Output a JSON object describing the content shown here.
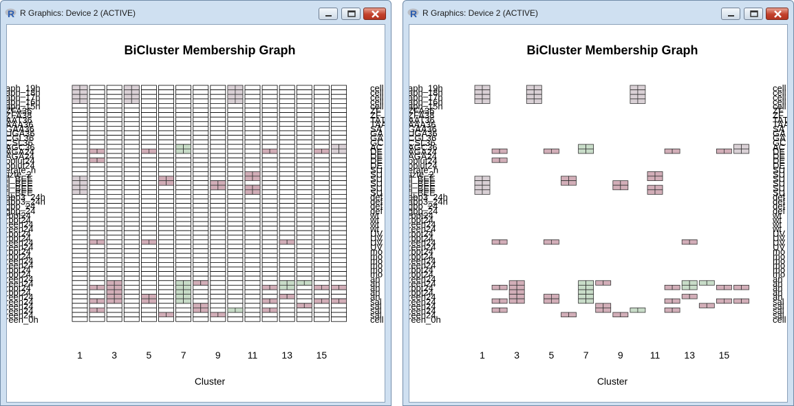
{
  "windows": [
    {
      "title": "R Graphics: Device 2 (ACTIVE)",
      "plot": {
        "title": "BiCluster Membership Graph",
        "xlabel": "Cluster",
        "ticks": [
          "1",
          "3",
          "5",
          "7",
          "9",
          "11",
          "13",
          "15"
        ],
        "show_empty_cells": true
      }
    },
    {
      "title": "R Graphics: Device 2 (ACTIVE)",
      "plot": {
        "title": "BiCluster Membership Graph",
        "xlabel": "Cluster",
        "ticks": [
          "1",
          "3",
          "5",
          "7",
          "9",
          "11",
          "13",
          "15"
        ],
        "show_empty_cells": false
      }
    }
  ],
  "chart_data": {
    "type": "heatmap",
    "title": "BiCluster Membership Graph",
    "xlabel": "Cluster",
    "clusters": 16,
    "left_row_labels": [
      "aph_19h",
      "aph_18h",
      "aph_17h",
      "aph_16h",
      "aph_15h",
      "ZFA36",
      "ZFA38",
      "AAT36",
      "AAA36",
      "GAA36",
      "UGA36",
      "CGL36",
      "CSL36",
      "AGC36",
      "AGA24",
      "AGA24",
      "bplut24",
      "bplut24",
      "erate_h",
      "lizte_2",
      "fl_BEE",
      "fl_BEE",
      "fl_BEE",
      "fl_BEE",
      "abp3_24h",
      "abp3_24h",
      "gbp_24",
      "gbp_24",
      "rbpt24",
      "rbpt24",
      "reen24",
      "reen24",
      "rbpt24",
      "rbpt24",
      "reen24",
      "reen24",
      "rbpt24",
      "rbpt24",
      "reen24",
      "reen24",
      "rbpt24",
      "rbpt24",
      "reen24",
      "reen24",
      "rbpt24",
      "rbpt24",
      "reen24",
      "reen24",
      "reen24",
      "reen24",
      "reen24",
      "reen_0h"
    ],
    "right_row_labels": [
      "cell",
      "cell",
      "cell",
      "cell",
      "cell",
      "ZF",
      "ZF",
      "TAT",
      "TAA",
      "SA",
      "GA",
      "GA",
      "GC",
      "AC",
      "DE",
      "DE",
      "DE",
      "DE",
      "SU",
      "SU",
      "SU",
      "SU",
      "SU",
      "SU",
      "def",
      "def",
      "def",
      "def",
      "wt",
      "wt",
      "wt",
      "wt",
      "UV",
      "UV",
      "UV",
      "UV",
      "mo",
      "mo",
      "mo",
      "mo",
      "mo",
      "mo",
      "an",
      "an",
      "an",
      "an",
      "an",
      "sal",
      "sal",
      "sal",
      "sal",
      "cell"
    ],
    "colors": {
      "grey": "#d9d0d5",
      "pink": "#d2aeb8",
      "green": "#c8dcc8",
      "empty_outline": "#000000"
    },
    "blocks": [
      {
        "cluster": 1,
        "rows": [
          0,
          3
        ],
        "subcols": 2,
        "color": "grey"
      },
      {
        "cluster": 4,
        "rows": [
          0,
          3
        ],
        "subcols": 2,
        "color": "grey"
      },
      {
        "cluster": 10,
        "rows": [
          0,
          3
        ],
        "subcols": 2,
        "color": "grey"
      },
      {
        "cluster": 2,
        "rows": [
          14,
          14
        ],
        "subcols": 2,
        "color": "pink"
      },
      {
        "cluster": 5,
        "rows": [
          14,
          14
        ],
        "subcols": 2,
        "color": "pink"
      },
      {
        "cluster": 7,
        "rows": [
          13,
          14
        ],
        "subcols": 2,
        "color": "green"
      },
      {
        "cluster": 12,
        "rows": [
          14,
          14
        ],
        "subcols": 2,
        "color": "pink"
      },
      {
        "cluster": 15,
        "rows": [
          14,
          14
        ],
        "subcols": 2,
        "color": "pink"
      },
      {
        "cluster": 16,
        "rows": [
          13,
          14
        ],
        "subcols": 2,
        "color": "grey"
      },
      {
        "cluster": 2,
        "rows": [
          16,
          16
        ],
        "subcols": 2,
        "color": "pink"
      },
      {
        "cluster": 1,
        "rows": [
          20,
          23
        ],
        "subcols": 2,
        "color": "grey"
      },
      {
        "cluster": 6,
        "rows": [
          20,
          21
        ],
        "subcols": 2,
        "color": "pink"
      },
      {
        "cluster": 9,
        "rows": [
          21,
          22
        ],
        "subcols": 2,
        "color": "pink"
      },
      {
        "cluster": 11,
        "rows": [
          19,
          20
        ],
        "subcols": 2,
        "color": "pink"
      },
      {
        "cluster": 11,
        "rows": [
          22,
          23
        ],
        "subcols": 2,
        "color": "pink"
      },
      {
        "cluster": 2,
        "rows": [
          34,
          34
        ],
        "subcols": 2,
        "color": "pink"
      },
      {
        "cluster": 5,
        "rows": [
          34,
          34
        ],
        "subcols": 2,
        "color": "pink"
      },
      {
        "cluster": 13,
        "rows": [
          34,
          34
        ],
        "subcols": 2,
        "color": "pink"
      },
      {
        "cluster": 3,
        "rows": [
          43,
          47
        ],
        "subcols": 2,
        "color": "pink"
      },
      {
        "cluster": 7,
        "rows": [
          43,
          44
        ],
        "subcols": 2,
        "color": "green"
      },
      {
        "cluster": 7,
        "rows": [
          45,
          47
        ],
        "subcols": 2,
        "color": "green"
      },
      {
        "cluster": 8,
        "rows": [
          43,
          43
        ],
        "subcols": 2,
        "color": "pink"
      },
      {
        "cluster": 13,
        "rows": [
          43,
          44
        ],
        "subcols": 2,
        "color": "green"
      },
      {
        "cluster": 14,
        "rows": [
          43,
          43
        ],
        "subcols": 2,
        "color": "green"
      },
      {
        "cluster": 2,
        "rows": [
          44,
          44
        ],
        "subcols": 2,
        "color": "pink"
      },
      {
        "cluster": 12,
        "rows": [
          44,
          44
        ],
        "subcols": 2,
        "color": "pink"
      },
      {
        "cluster": 15,
        "rows": [
          44,
          44
        ],
        "subcols": 2,
        "color": "pink"
      },
      {
        "cluster": 16,
        "rows": [
          44,
          44
        ],
        "subcols": 2,
        "color": "pink"
      },
      {
        "cluster": 5,
        "rows": [
          46,
          46
        ],
        "subcols": 2,
        "color": "pink"
      },
      {
        "cluster": 13,
        "rows": [
          46,
          46
        ],
        "subcols": 2,
        "color": "pink"
      },
      {
        "cluster": 2,
        "rows": [
          47,
          47
        ],
        "subcols": 2,
        "color": "pink"
      },
      {
        "cluster": 5,
        "rows": [
          47,
          47
        ],
        "subcols": 2,
        "color": "pink"
      },
      {
        "cluster": 12,
        "rows": [
          47,
          47
        ],
        "subcols": 2,
        "color": "pink"
      },
      {
        "cluster": 15,
        "rows": [
          47,
          47
        ],
        "subcols": 2,
        "color": "pink"
      },
      {
        "cluster": 16,
        "rows": [
          47,
          47
        ],
        "subcols": 2,
        "color": "pink"
      },
      {
        "cluster": 8,
        "rows": [
          48,
          48
        ],
        "subcols": 2,
        "color": "pink"
      },
      {
        "cluster": 14,
        "rows": [
          48,
          48
        ],
        "subcols": 2,
        "color": "pink"
      },
      {
        "cluster": 2,
        "rows": [
          49,
          49
        ],
        "subcols": 2,
        "color": "pink"
      },
      {
        "cluster": 8,
        "rows": [
          49,
          49
        ],
        "subcols": 2,
        "color": "pink"
      },
      {
        "cluster": 12,
        "rows": [
          49,
          49
        ],
        "subcols": 2,
        "color": "pink"
      },
      {
        "cluster": 6,
        "rows": [
          50,
          50
        ],
        "subcols": 2,
        "color": "pink"
      },
      {
        "cluster": 9,
        "rows": [
          50,
          50
        ],
        "subcols": 2,
        "color": "pink"
      },
      {
        "cluster": 10,
        "rows": [
          49,
          49
        ],
        "subcols": 2,
        "color": "green"
      }
    ]
  }
}
